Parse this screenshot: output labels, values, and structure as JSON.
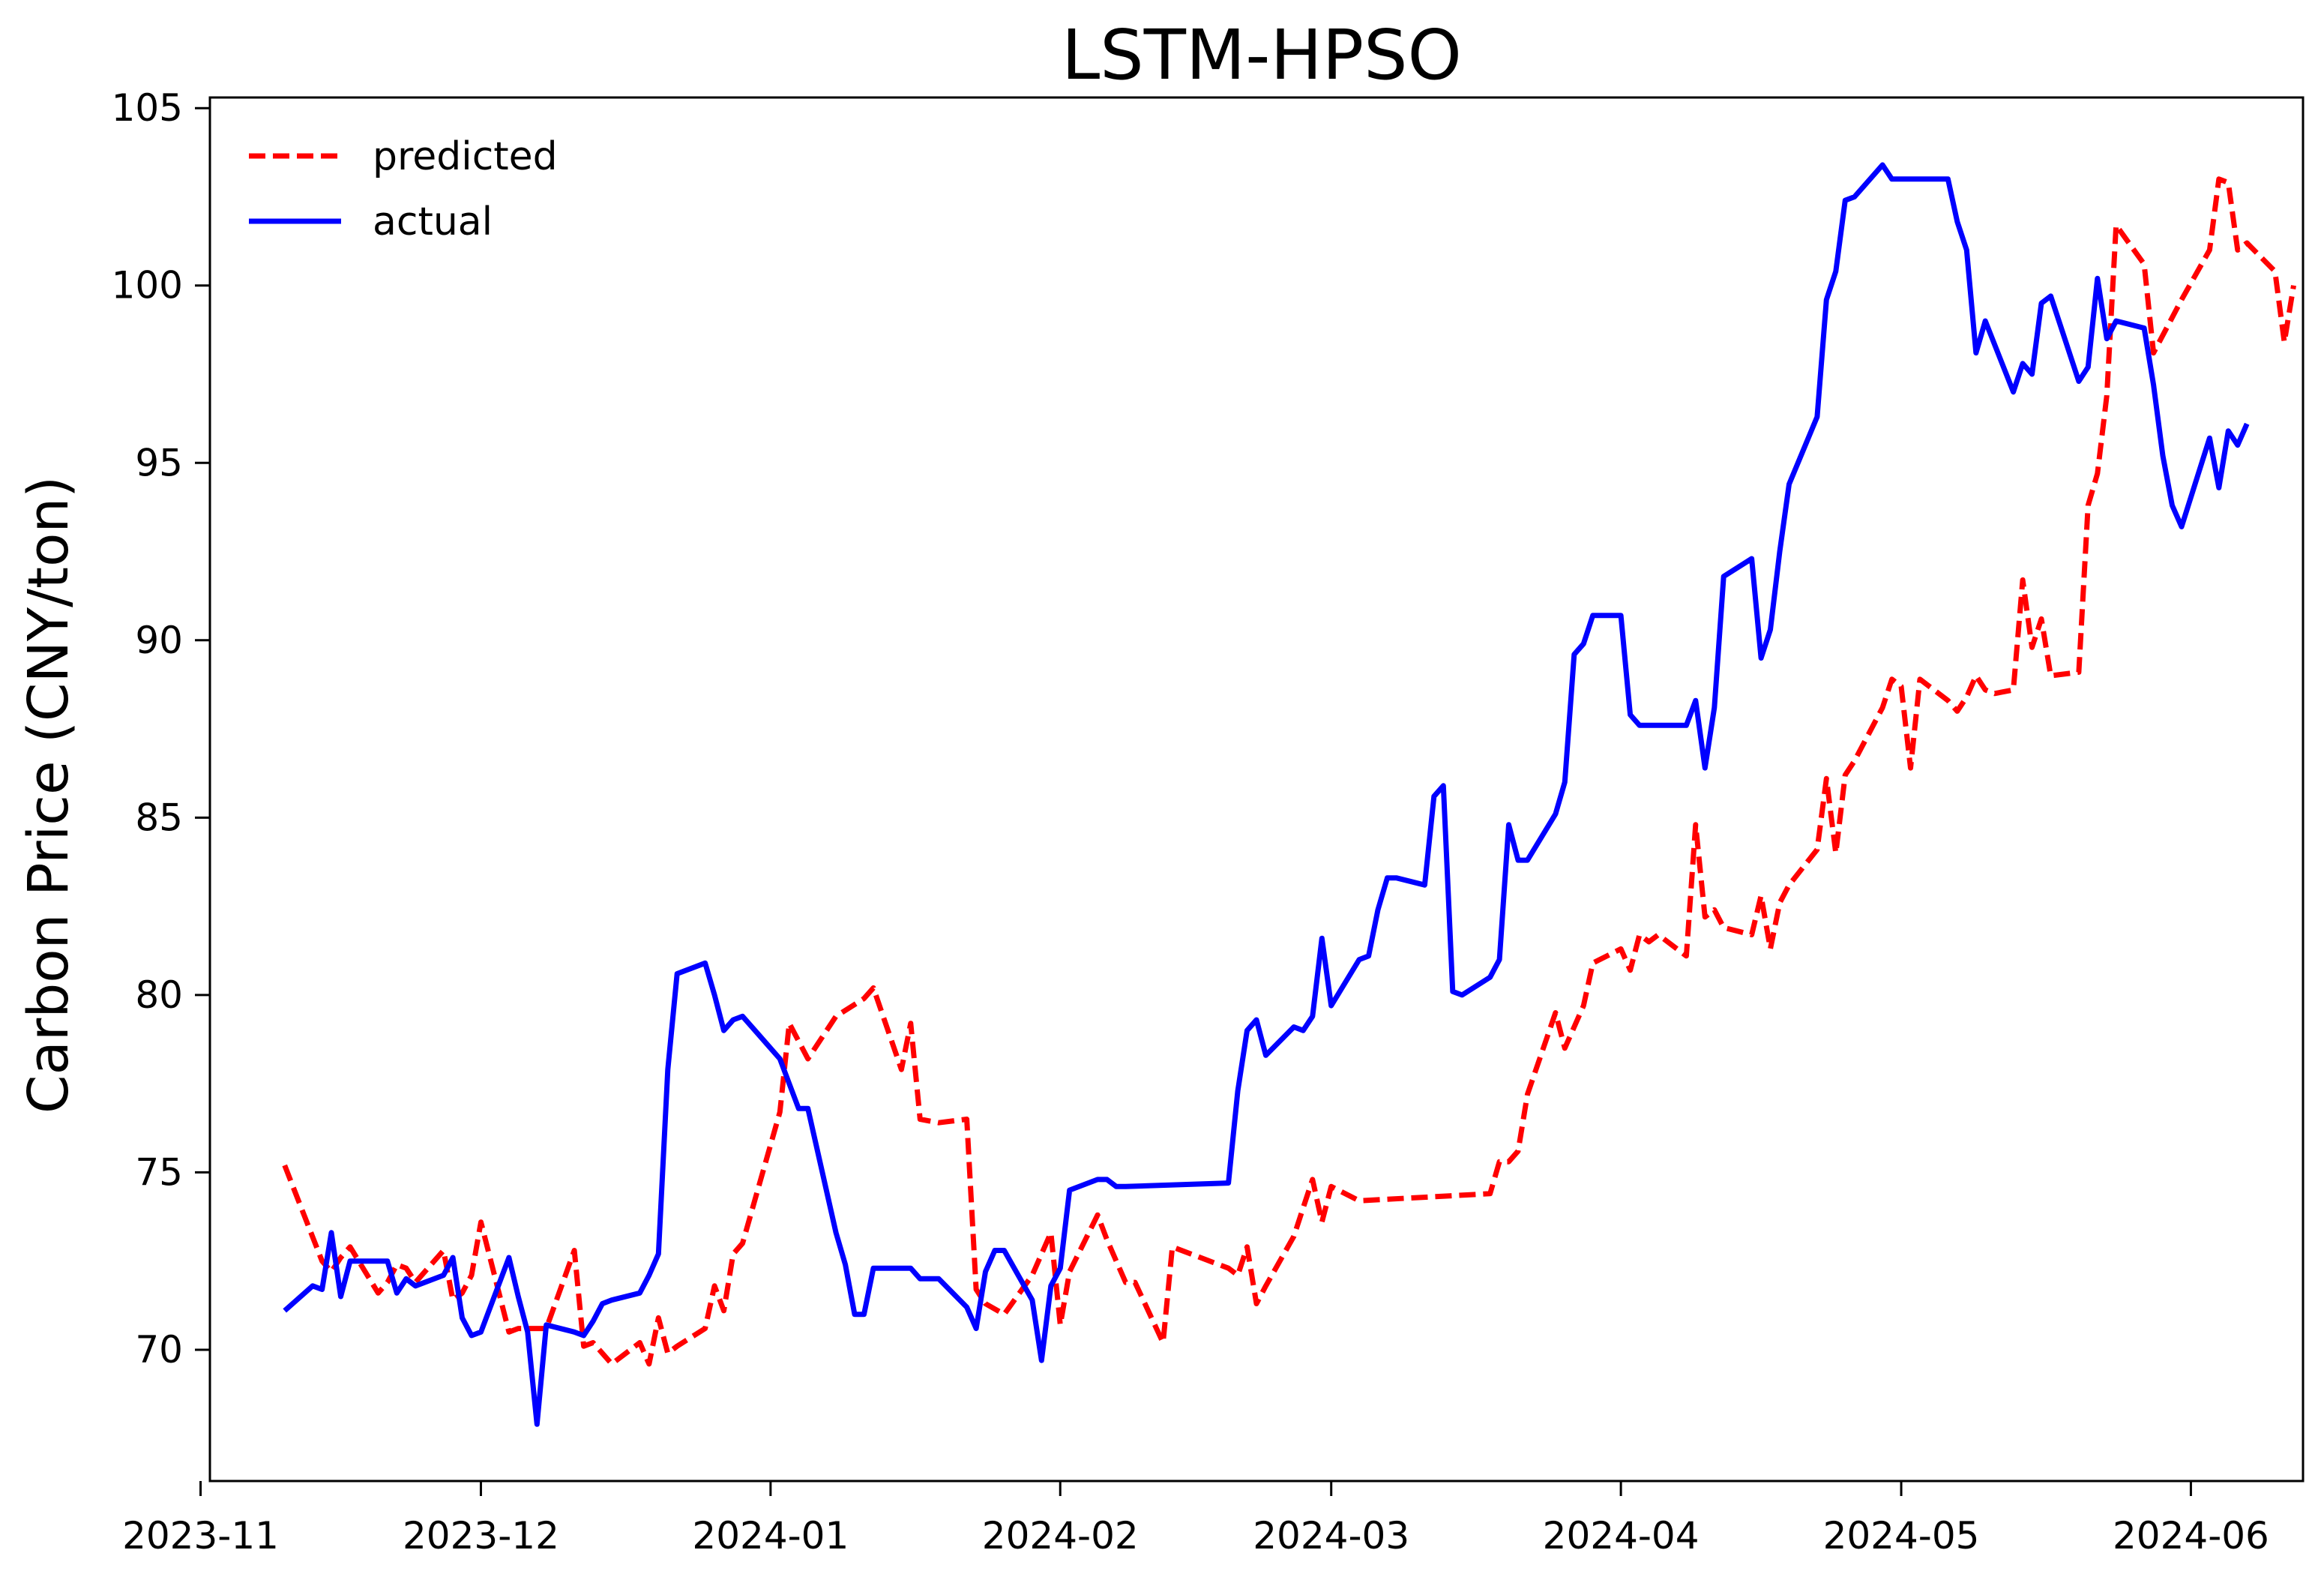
{
  "chart_data": {
    "type": "line",
    "title": "LSTM-HPSO",
    "xlabel": "",
    "ylabel": "Carbon Price (CNY/ton)",
    "x_type": "date",
    "xlim": [
      "2023-11-02",
      "2024-06-13"
    ],
    "ylim": [
      66.3,
      105.3
    ],
    "grid": false,
    "legend": "top-left",
    "x_ticks": [
      {
        "date": "2023-11-01",
        "label": "2023-11"
      },
      {
        "date": "2023-12-01",
        "label": "2023-12"
      },
      {
        "date": "2024-01-01",
        "label": "2024-01"
      },
      {
        "date": "2024-02-01",
        "label": "2024-02"
      },
      {
        "date": "2024-03-01",
        "label": "2024-03"
      },
      {
        "date": "2024-04-01",
        "label": "2024-04"
      },
      {
        "date": "2024-05-01",
        "label": "2024-05"
      },
      {
        "date": "2024-06-01",
        "label": "2024-06"
      }
    ],
    "y_ticks": [
      {
        "value": 70,
        "label": "70"
      },
      {
        "value": 75,
        "label": "75"
      },
      {
        "value": 80,
        "label": "80"
      },
      {
        "value": 85,
        "label": "85"
      },
      {
        "value": 90,
        "label": "90"
      },
      {
        "value": 95,
        "label": "95"
      },
      {
        "value": 100,
        "label": "100"
      },
      {
        "value": 105,
        "label": "105"
      }
    ],
    "series": [
      {
        "name": "predicted",
        "color": "#ff0000",
        "style": "dashed",
        "points": [
          [
            "2023-11-10",
            75.2
          ],
          [
            "2023-11-14",
            72.5
          ],
          [
            "2023-11-15",
            72.2
          ],
          [
            "2023-11-16",
            72.6
          ],
          [
            "2023-11-17",
            72.9
          ],
          [
            "2023-11-20",
            71.6
          ],
          [
            "2023-11-21",
            71.9
          ],
          [
            "2023-11-22",
            72.4
          ],
          [
            "2023-11-23",
            72.3
          ],
          [
            "2023-11-24",
            71.9
          ],
          [
            "2023-11-27",
            72.8
          ],
          [
            "2023-11-28",
            71.4
          ],
          [
            "2023-11-29",
            71.6
          ],
          [
            "2023-11-30",
            72.1
          ],
          [
            "2023-12-01",
            73.6
          ],
          [
            "2023-12-04",
            70.5
          ],
          [
            "2023-12-05",
            70.6
          ],
          [
            "2023-12-08",
            70.6
          ],
          [
            "2023-12-11",
            72.8
          ],
          [
            "2023-12-12",
            70.1
          ],
          [
            "2023-12-13",
            70.2
          ],
          [
            "2023-12-15",
            69.6
          ],
          [
            "2023-12-18",
            70.2
          ],
          [
            "2023-12-19",
            69.6
          ],
          [
            "2023-12-20",
            70.9
          ],
          [
            "2023-12-21",
            69.9
          ],
          [
            "2023-12-22",
            70.1
          ],
          [
            "2023-12-25",
            70.6
          ],
          [
            "2023-12-26",
            71.8
          ],
          [
            "2023-12-27",
            71.1
          ],
          [
            "2023-12-28",
            72.7
          ],
          [
            "2023-12-29",
            73.0
          ],
          [
            "2024-01-02",
            76.7
          ],
          [
            "2024-01-03",
            79.2
          ],
          [
            "2024-01-05",
            78.2
          ],
          [
            "2024-01-08",
            79.4
          ],
          [
            "2024-01-11",
            79.9
          ],
          [
            "2024-01-12",
            80.2
          ],
          [
            "2024-01-15",
            77.9
          ],
          [
            "2024-01-16",
            79.2
          ],
          [
            "2024-01-17",
            76.5
          ],
          [
            "2024-01-19",
            76.4
          ],
          [
            "2024-01-22",
            76.5
          ],
          [
            "2024-01-23",
            71.7
          ],
          [
            "2024-01-24",
            71.3
          ],
          [
            "2024-01-26",
            71.0
          ],
          [
            "2024-01-29",
            72.1
          ],
          [
            "2024-01-31",
            73.3
          ],
          [
            "2024-02-01",
            70.7
          ],
          [
            "2024-02-02",
            72.2
          ],
          [
            "2024-02-05",
            73.8
          ],
          [
            "2024-02-06",
            73.1
          ],
          [
            "2024-02-07",
            72.5
          ],
          [
            "2024-02-08",
            71.9
          ],
          [
            "2024-02-09",
            71.9
          ],
          [
            "2024-02-12",
            70.2
          ],
          [
            "2024-02-13",
            72.9
          ],
          [
            "2024-02-19",
            72.3
          ],
          [
            "2024-02-20",
            72.1
          ],
          [
            "2024-02-21",
            72.9
          ],
          [
            "2024-02-22",
            71.3
          ],
          [
            "2024-02-23",
            71.8
          ],
          [
            "2024-02-26",
            73.2
          ],
          [
            "2024-02-27",
            74.0
          ],
          [
            "2024-02-28",
            74.8
          ],
          [
            "2024-02-29",
            73.6
          ],
          [
            "2024-03-01",
            74.6
          ],
          [
            "2024-03-04",
            74.2
          ],
          [
            "2024-03-18",
            74.4
          ],
          [
            "2024-03-19",
            75.3
          ],
          [
            "2024-03-20",
            75.3
          ],
          [
            "2024-03-21",
            75.6
          ],
          [
            "2024-03-22",
            77.2
          ],
          [
            "2024-03-25",
            79.5
          ],
          [
            "2024-03-26",
            78.5
          ],
          [
            "2024-03-27",
            79.1
          ],
          [
            "2024-03-28",
            79.7
          ],
          [
            "2024-03-29",
            80.9
          ],
          [
            "2024-04-01",
            81.3
          ],
          [
            "2024-04-02",
            80.7
          ],
          [
            "2024-04-03",
            81.7
          ],
          [
            "2024-04-04",
            81.5
          ],
          [
            "2024-04-05",
            81.7
          ],
          [
            "2024-04-08",
            81.1
          ],
          [
            "2024-04-09",
            84.8
          ],
          [
            "2024-04-10",
            82.2
          ],
          [
            "2024-04-11",
            82.4
          ],
          [
            "2024-04-12",
            81.9
          ],
          [
            "2024-04-15",
            81.7
          ],
          [
            "2024-04-16",
            82.8
          ],
          [
            "2024-04-17",
            81.3
          ],
          [
            "2024-04-18",
            82.6
          ],
          [
            "2024-04-19",
            83.1
          ],
          [
            "2024-04-22",
            84.1
          ],
          [
            "2024-04-23",
            86.1
          ],
          [
            "2024-04-24",
            84.0
          ],
          [
            "2024-04-25",
            86.2
          ],
          [
            "2024-04-26",
            86.6
          ],
          [
            "2024-04-29",
            88.1
          ],
          [
            "2024-04-30",
            88.9
          ],
          [
            "2024-05-01",
            88.7
          ],
          [
            "2024-05-02",
            86.4
          ],
          [
            "2024-05-03",
            88.9
          ],
          [
            "2024-05-06",
            88.3
          ],
          [
            "2024-05-07",
            88.0
          ],
          [
            "2024-05-08",
            88.4
          ],
          [
            "2024-05-09",
            89.0
          ],
          [
            "2024-05-10",
            88.6
          ],
          [
            "2024-05-11",
            88.5
          ],
          [
            "2024-05-13",
            88.6
          ],
          [
            "2024-05-14",
            91.7
          ],
          [
            "2024-05-15",
            89.8
          ],
          [
            "2024-05-16",
            90.6
          ],
          [
            "2024-05-17",
            89.0
          ],
          [
            "2024-05-20",
            89.1
          ],
          [
            "2024-05-21",
            93.8
          ],
          [
            "2024-05-22",
            94.7
          ],
          [
            "2024-05-23",
            96.9
          ],
          [
            "2024-05-24",
            101.7
          ],
          [
            "2024-05-27",
            100.6
          ],
          [
            "2024-05-28",
            98.1
          ],
          [
            "2024-05-31",
            99.6
          ],
          [
            "2024-06-03",
            101.0
          ],
          [
            "2024-06-04",
            103.0
          ],
          [
            "2024-06-05",
            102.9
          ],
          [
            "2024-06-06",
            101.0
          ],
          [
            "2024-06-07",
            101.2
          ],
          [
            "2024-06-10",
            100.4
          ],
          [
            "2024-06-11",
            98.4
          ],
          [
            "2024-06-12",
            100.0
          ]
        ]
      },
      {
        "name": "actual",
        "color": "#0000ff",
        "style": "solid",
        "points": [
          [
            "2023-11-10",
            71.1
          ],
          [
            "2023-11-13",
            71.8
          ],
          [
            "2023-11-14",
            71.7
          ],
          [
            "2023-11-15",
            73.3
          ],
          [
            "2023-11-16",
            71.5
          ],
          [
            "2023-11-17",
            72.5
          ],
          [
            "2023-11-21",
            72.5
          ],
          [
            "2023-11-22",
            71.6
          ],
          [
            "2023-11-23",
            72.0
          ],
          [
            "2023-11-24",
            71.8
          ],
          [
            "2023-11-27",
            72.1
          ],
          [
            "2023-11-28",
            72.6
          ],
          [
            "2023-11-29",
            70.9
          ],
          [
            "2023-11-30",
            70.4
          ],
          [
            "2023-12-01",
            70.5
          ],
          [
            "2023-12-04",
            72.6
          ],
          [
            "2023-12-05",
            71.5
          ],
          [
            "2023-12-06",
            70.5
          ],
          [
            "2023-12-07",
            67.9
          ],
          [
            "2023-12-08",
            70.7
          ],
          [
            "2023-12-11",
            70.5
          ],
          [
            "2023-12-12",
            70.4
          ],
          [
            "2023-12-13",
            70.8
          ],
          [
            "2023-12-14",
            71.3
          ],
          [
            "2023-12-15",
            71.4
          ],
          [
            "2023-12-18",
            71.6
          ],
          [
            "2023-12-19",
            72.1
          ],
          [
            "2023-12-20",
            72.7
          ],
          [
            "2023-12-21",
            77.9
          ],
          [
            "2023-12-22",
            80.6
          ],
          [
            "2023-12-25",
            80.9
          ],
          [
            "2023-12-26",
            80.0
          ],
          [
            "2023-12-27",
            79.0
          ],
          [
            "2023-12-28",
            79.3
          ],
          [
            "2023-12-29",
            79.4
          ],
          [
            "2024-01-02",
            78.2
          ],
          [
            "2024-01-03",
            77.5
          ],
          [
            "2024-01-04",
            76.8
          ],
          [
            "2024-01-05",
            76.8
          ],
          [
            "2024-01-08",
            73.3
          ],
          [
            "2024-01-09",
            72.4
          ],
          [
            "2024-01-10",
            71.0
          ],
          [
            "2024-01-11",
            71.0
          ],
          [
            "2024-01-12",
            72.3
          ],
          [
            "2024-01-15",
            72.3
          ],
          [
            "2024-01-16",
            72.3
          ],
          [
            "2024-01-17",
            72.0
          ],
          [
            "2024-01-18",
            72.0
          ],
          [
            "2024-01-19",
            72.0
          ],
          [
            "2024-01-22",
            71.2
          ],
          [
            "2024-01-23",
            70.6
          ],
          [
            "2024-01-24",
            72.2
          ],
          [
            "2024-01-25",
            72.8
          ],
          [
            "2024-01-26",
            72.8
          ],
          [
            "2024-01-29",
            71.4
          ],
          [
            "2024-01-30",
            69.7
          ],
          [
            "2024-01-31",
            71.8
          ],
          [
            "2024-02-01",
            72.3
          ],
          [
            "2024-02-02",
            74.5
          ],
          [
            "2024-02-05",
            74.8
          ],
          [
            "2024-02-06",
            74.8
          ],
          [
            "2024-02-07",
            74.6
          ],
          [
            "2024-02-08",
            74.6
          ],
          [
            "2024-02-19",
            74.7
          ],
          [
            "2024-02-20",
            77.3
          ],
          [
            "2024-02-21",
            79.0
          ],
          [
            "2024-02-22",
            79.3
          ],
          [
            "2024-02-23",
            78.3
          ],
          [
            "2024-02-26",
            79.1
          ],
          [
            "2024-02-27",
            79.0
          ],
          [
            "2024-02-28",
            79.4
          ],
          [
            "2024-02-29",
            81.6
          ],
          [
            "2024-03-01",
            79.7
          ],
          [
            "2024-03-04",
            81.0
          ],
          [
            "2024-03-05",
            81.1
          ],
          [
            "2024-03-06",
            82.4
          ],
          [
            "2024-03-07",
            83.3
          ],
          [
            "2024-03-08",
            83.3
          ],
          [
            "2024-03-11",
            83.1
          ],
          [
            "2024-03-12",
            85.6
          ],
          [
            "2024-03-13",
            85.9
          ],
          [
            "2024-03-14",
            80.1
          ],
          [
            "2024-03-15",
            80.0
          ],
          [
            "2024-03-18",
            80.5
          ],
          [
            "2024-03-19",
            81.0
          ],
          [
            "2024-03-20",
            84.8
          ],
          [
            "2024-03-21",
            83.8
          ],
          [
            "2024-03-22",
            83.8
          ],
          [
            "2024-03-25",
            85.1
          ],
          [
            "2024-03-26",
            86.0
          ],
          [
            "2024-03-27",
            89.6
          ],
          [
            "2024-03-28",
            89.9
          ],
          [
            "2024-03-29",
            90.7
          ],
          [
            "2024-04-01",
            90.7
          ],
          [
            "2024-04-02",
            87.9
          ],
          [
            "2024-04-03",
            87.6
          ],
          [
            "2024-04-08",
            87.6
          ],
          [
            "2024-04-09",
            88.3
          ],
          [
            "2024-04-10",
            86.4
          ],
          [
            "2024-04-11",
            88.1
          ],
          [
            "2024-04-12",
            91.8
          ],
          [
            "2024-04-15",
            92.3
          ],
          [
            "2024-04-16",
            89.5
          ],
          [
            "2024-04-17",
            90.3
          ],
          [
            "2024-04-18",
            92.5
          ],
          [
            "2024-04-19",
            94.4
          ],
          [
            "2024-04-22",
            96.3
          ],
          [
            "2024-04-23",
            99.6
          ],
          [
            "2024-04-24",
            100.4
          ],
          [
            "2024-04-25",
            102.4
          ],
          [
            "2024-04-26",
            102.5
          ],
          [
            "2024-04-29",
            103.4
          ],
          [
            "2024-04-30",
            103.0
          ],
          [
            "2024-05-06",
            103.0
          ],
          [
            "2024-05-07",
            101.8
          ],
          [
            "2024-05-08",
            101.0
          ],
          [
            "2024-05-09",
            98.1
          ],
          [
            "2024-05-10",
            99.0
          ],
          [
            "2024-05-13",
            97.0
          ],
          [
            "2024-05-14",
            97.8
          ],
          [
            "2024-05-15",
            97.5
          ],
          [
            "2024-05-16",
            99.5
          ],
          [
            "2024-05-17",
            99.7
          ],
          [
            "2024-05-20",
            97.3
          ],
          [
            "2024-05-21",
            97.7
          ],
          [
            "2024-05-22",
            100.2
          ],
          [
            "2024-05-23",
            98.5
          ],
          [
            "2024-05-24",
            99.0
          ],
          [
            "2024-05-27",
            98.8
          ],
          [
            "2024-05-28",
            97.2
          ],
          [
            "2024-05-29",
            95.2
          ],
          [
            "2024-05-30",
            93.8
          ],
          [
            "2024-05-31",
            93.2
          ],
          [
            "2024-06-03",
            95.7
          ],
          [
            "2024-06-04",
            94.3
          ],
          [
            "2024-06-05",
            95.9
          ],
          [
            "2024-06-06",
            95.5
          ],
          [
            "2024-06-07",
            96.1
          ]
        ]
      }
    ]
  }
}
